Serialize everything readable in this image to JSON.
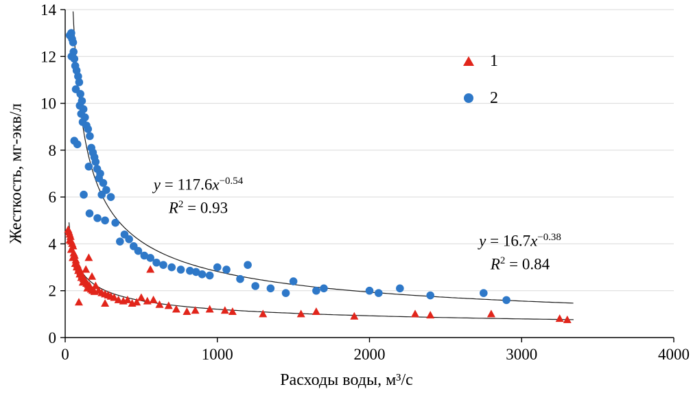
{
  "chart_data": {
    "type": "scatter",
    "title": "",
    "xlabel": "Расходы воды, м³/с",
    "ylabel": "Жесткость, мг-экв/л",
    "xlim": [
      0,
      4000
    ],
    "ylim": [
      0,
      14
    ],
    "x_ticks": [
      0,
      1000,
      2000,
      3000,
      4000
    ],
    "y_ticks": [
      0,
      2,
      4,
      6,
      8,
      10,
      12,
      14
    ],
    "grid": "horizontal",
    "legend_position": "top-right",
    "colors": {
      "grid": "#d9d9d9",
      "axis": "#000000",
      "trend": "#1a1a1a"
    },
    "series": [
      {
        "name": "1",
        "marker": "triangle",
        "color": "#e1251b",
        "trend": {
          "model": "power",
          "a": 16.7,
          "b": -0.38,
          "r2_value": 0.84,
          "x_range": [
            25,
            3350
          ],
          "equation": {
            "lhs": "y",
            "mid": " = 16.7",
            "var": "x",
            "exp": "−0.38"
          },
          "r2": {
            "base": "R",
            "sup": "2",
            "value": " = 0.84"
          }
        },
        "points": [
          [
            20,
            4.6
          ],
          [
            25,
            4.5
          ],
          [
            30,
            4.4
          ],
          [
            35,
            4.3
          ],
          [
            30,
            4.15
          ],
          [
            40,
            4.1
          ],
          [
            46,
            4.0
          ],
          [
            52,
            3.9
          ],
          [
            40,
            3.75
          ],
          [
            56,
            3.6
          ],
          [
            62,
            3.5
          ],
          [
            50,
            3.4
          ],
          [
            70,
            3.3
          ],
          [
            66,
            3.15
          ],
          [
            80,
            3.1
          ],
          [
            76,
            3.0
          ],
          [
            90,
            2.95
          ],
          [
            86,
            2.85
          ],
          [
            100,
            2.8
          ],
          [
            96,
            2.7
          ],
          [
            110,
            2.65
          ],
          [
            106,
            2.55
          ],
          [
            120,
            2.5
          ],
          [
            130,
            2.45
          ],
          [
            116,
            2.35
          ],
          [
            140,
            2.3
          ],
          [
            150,
            2.25
          ],
          [
            160,
            2.2
          ],
          [
            146,
            2.1
          ],
          [
            170,
            2.05
          ],
          [
            180,
            2.0
          ],
          [
            192,
            1.95
          ],
          [
            200,
            2.2
          ],
          [
            155,
            3.4
          ],
          [
            136,
            2.9
          ],
          [
            176,
            2.6
          ],
          [
            220,
            2.0
          ],
          [
            240,
            1.9
          ],
          [
            262,
            1.85
          ],
          [
            282,
            1.8
          ],
          [
            300,
            1.75
          ],
          [
            322,
            1.7
          ],
          [
            350,
            1.6
          ],
          [
            262,
            1.45
          ],
          [
            382,
            1.55
          ],
          [
            410,
            1.6
          ],
          [
            440,
            1.45
          ],
          [
            470,
            1.5
          ],
          [
            500,
            1.7
          ],
          [
            540,
            1.55
          ],
          [
            580,
            1.6
          ],
          [
            560,
            2.9
          ],
          [
            620,
            1.4
          ],
          [
            680,
            1.35
          ],
          [
            730,
            1.2
          ],
          [
            800,
            1.1
          ],
          [
            855,
            1.15
          ],
          [
            950,
            1.2
          ],
          [
            1050,
            1.15
          ],
          [
            1100,
            1.1
          ],
          [
            1300,
            1.0
          ],
          [
            1550,
            1.0
          ],
          [
            1650,
            1.1
          ],
          [
            1900,
            0.9
          ],
          [
            2300,
            1.0
          ],
          [
            2400,
            0.95
          ],
          [
            2800,
            1.0
          ],
          [
            3250,
            0.8
          ],
          [
            3300,
            0.75
          ],
          [
            90,
            1.5
          ]
        ]
      },
      {
        "name": "2",
        "marker": "circle",
        "color": "#2e78c8",
        "trend": {
          "model": "power",
          "a": 117.6,
          "b": -0.54,
          "r2_value": 0.93,
          "x_range": [
            50,
            3350
          ],
          "equation": {
            "lhs": "y",
            "mid": " = 117.6",
            "var": "x",
            "exp": "−0.54"
          },
          "r2": {
            "base": "R",
            "sup": "2",
            "value": " = 0.93"
          }
        },
        "points": [
          [
            30,
            12.9
          ],
          [
            40,
            13.0
          ],
          [
            45,
            12.75
          ],
          [
            52,
            12.6
          ],
          [
            55,
            12.2
          ],
          [
            42,
            12.0
          ],
          [
            60,
            11.9
          ],
          [
            66,
            11.6
          ],
          [
            75,
            11.4
          ],
          [
            85,
            11.15
          ],
          [
            92,
            10.9
          ],
          [
            70,
            10.6
          ],
          [
            100,
            10.4
          ],
          [
            110,
            10.1
          ],
          [
            96,
            9.9
          ],
          [
            120,
            9.75
          ],
          [
            105,
            9.55
          ],
          [
            130,
            9.4
          ],
          [
            115,
            9.2
          ],
          [
            140,
            9.05
          ],
          [
            60,
            8.4
          ],
          [
            80,
            8.25
          ],
          [
            150,
            8.9
          ],
          [
            162,
            8.6
          ],
          [
            172,
            8.1
          ],
          [
            182,
            7.9
          ],
          [
            192,
            7.7
          ],
          [
            200,
            7.5
          ],
          [
            155,
            7.3
          ],
          [
            210,
            7.2
          ],
          [
            230,
            7.0
          ],
          [
            222,
            6.8
          ],
          [
            250,
            6.6
          ],
          [
            270,
            6.3
          ],
          [
            240,
            6.1
          ],
          [
            300,
            6.0
          ],
          [
            122,
            6.1
          ],
          [
            160,
            5.3
          ],
          [
            212,
            5.1
          ],
          [
            262,
            5.0
          ],
          [
            330,
            4.9
          ],
          [
            390,
            4.4
          ],
          [
            420,
            4.2
          ],
          [
            360,
            4.1
          ],
          [
            450,
            3.9
          ],
          [
            480,
            3.7
          ],
          [
            520,
            3.5
          ],
          [
            560,
            3.4
          ],
          [
            600,
            3.2
          ],
          [
            645,
            3.1
          ],
          [
            700,
            3.0
          ],
          [
            760,
            2.9
          ],
          [
            820,
            2.85
          ],
          [
            860,
            2.8
          ],
          [
            900,
            2.7
          ],
          [
            950,
            2.65
          ],
          [
            1000,
            3.0
          ],
          [
            1060,
            2.9
          ],
          [
            1150,
            2.5
          ],
          [
            1200,
            3.1
          ],
          [
            1250,
            2.2
          ],
          [
            1350,
            2.1
          ],
          [
            1450,
            1.9
          ],
          [
            1500,
            2.4
          ],
          [
            1650,
            2.0
          ],
          [
            1700,
            2.1
          ],
          [
            2000,
            2.0
          ],
          [
            2060,
            1.9
          ],
          [
            2200,
            2.1
          ],
          [
            2400,
            1.8
          ],
          [
            2750,
            1.9
          ],
          [
            2900,
            1.6
          ]
        ]
      }
    ]
  }
}
